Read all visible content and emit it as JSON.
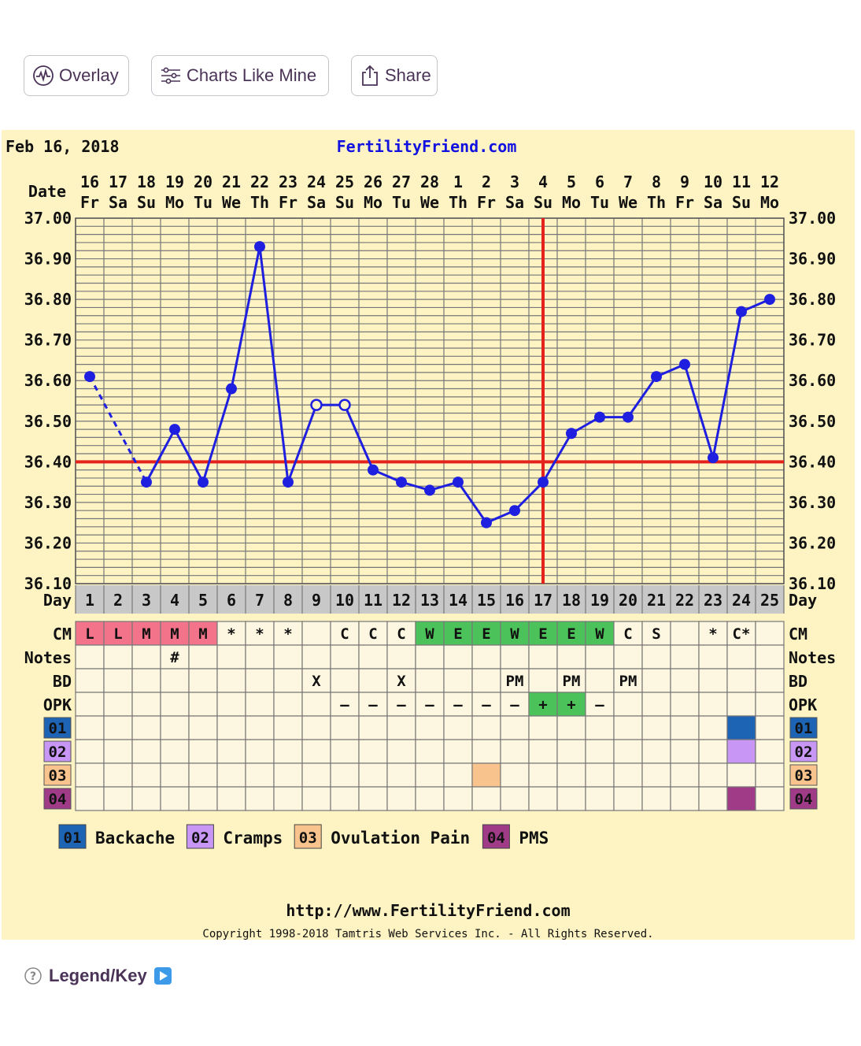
{
  "toolbar": {
    "overlay_label": "Overlay",
    "charts_like_mine_label": "Charts Like Mine",
    "share_label": "Share"
  },
  "chart_data": {
    "type": "line",
    "title": "FertilityFriend.com",
    "subtitle": "Feb 16, 2018",
    "ylim": [
      36.1,
      37.0
    ],
    "yticks": [
      "37.00",
      "36.90",
      "36.80",
      "36.70",
      "36.60",
      "36.50",
      "36.40",
      "36.30",
      "36.20",
      "36.10"
    ],
    "date_row_label": "Date",
    "day_row_label": "Day",
    "dates": [
      "16",
      "17",
      "18",
      "19",
      "20",
      "21",
      "22",
      "23",
      "24",
      "25",
      "26",
      "27",
      "28",
      "1",
      "2",
      "3",
      "4",
      "5",
      "6",
      "7",
      "8",
      "9",
      "10",
      "11",
      "12"
    ],
    "weekdays": [
      "Fr",
      "Sa",
      "Su",
      "Mo",
      "Tu",
      "We",
      "Th",
      "Fr",
      "Sa",
      "Su",
      "Mo",
      "Tu",
      "We",
      "Th",
      "Fr",
      "Sa",
      "Su",
      "Mo",
      "Tu",
      "We",
      "Th",
      "Fr",
      "Sa",
      "Su",
      "Mo"
    ],
    "days": [
      "1",
      "2",
      "3",
      "4",
      "5",
      "6",
      "7",
      "8",
      "9",
      "10",
      "11",
      "12",
      "13",
      "14",
      "15",
      "16",
      "17",
      "18",
      "19",
      "20",
      "21",
      "22",
      "23",
      "24",
      "25"
    ],
    "series": [
      {
        "values": [
          36.61,
          null,
          36.35,
          36.48,
          36.35,
          36.58,
          36.93,
          36.35,
          36.54,
          36.54,
          36.38,
          36.35,
          36.33,
          36.35,
          36.25,
          36.28,
          36.35,
          36.47,
          36.51,
          36.51,
          36.61,
          36.64,
          36.41,
          36.77,
          36.8
        ],
        "open_points": [
          9,
          10
        ],
        "dashed_segments": [
          [
            1,
            3
          ]
        ],
        "color": "#1f1fe0"
      }
    ],
    "coverline": 36.4,
    "ovulation_day": 17,
    "line_colors": {
      "coverline": "#e3231c",
      "ovulation": "#e3231c"
    },
    "rows": [
      {
        "label": "CM",
        "cells": [
          "L",
          "L",
          "M",
          "M",
          "M",
          "*",
          "*",
          "*",
          "",
          "C",
          "C",
          "C",
          "W",
          "E",
          "E",
          "W",
          "E",
          "E",
          "W",
          "C",
          "S",
          "",
          "*",
          "C*",
          ""
        ],
        "colors": [
          "#f3738a",
          "#f3738a",
          "#f3738a",
          "#f3738a",
          "#f3738a",
          "",
          "",
          "",
          "",
          "",
          "",
          "",
          "#4cc35a",
          "#4cc35a",
          "#4cc35a",
          "#4cc35a",
          "#4cc35a",
          "#4cc35a",
          "#4cc35a",
          "",
          "",
          "",
          "",
          "",
          ""
        ]
      },
      {
        "label": "Notes",
        "cells": [
          "",
          "",
          "",
          "#",
          "",
          "",
          "",
          "",
          "",
          "",
          "",
          "",
          "",
          "",
          "",
          "",
          "",
          "",
          "",
          "",
          "",
          "",
          "",
          "",
          ""
        ]
      },
      {
        "label": "BD",
        "cells": [
          "",
          "",
          "",
          "",
          "",
          "",
          "",
          "",
          "X",
          "",
          "",
          "X",
          "",
          "",
          "",
          "PM",
          "",
          "PM",
          "",
          "PM",
          "",
          "",
          "",
          "",
          ""
        ]
      },
      {
        "label": "OPK",
        "cells": [
          "",
          "",
          "",
          "",
          "",
          "",
          "",
          "",
          "",
          "–",
          "–",
          "–",
          "–",
          "–",
          "–",
          "–",
          "+",
          "+",
          "–",
          "",
          "",
          "",
          "",
          "",
          ""
        ],
        "colors": [
          "",
          "",
          "",
          "",
          "",
          "",
          "",
          "",
          "",
          "",
          "",
          "",
          "",
          "",
          "",
          "",
          "#4cc35a",
          "#4cc35a",
          "",
          "",
          "",
          "",
          "",
          "",
          ""
        ]
      },
      {
        "label": "01",
        "badge_color": "#1e64b4",
        "colors": [
          "",
          "",
          "",
          "",
          "",
          "",
          "",
          "",
          "",
          "",
          "",
          "",
          "",
          "",
          "",
          "",
          "",
          "",
          "",
          "",
          "",
          "",
          "",
          "#1e64b4",
          ""
        ]
      },
      {
        "label": "02",
        "badge_color": "#c896f5",
        "colors": [
          "",
          "",
          "",
          "",
          "",
          "",
          "",
          "",
          "",
          "",
          "",
          "",
          "",
          "",
          "",
          "",
          "",
          "",
          "",
          "",
          "",
          "",
          "",
          "#c896f5",
          ""
        ]
      },
      {
        "label": "03",
        "badge_color": "#f8c38c",
        "colors": [
          "",
          "",
          "",
          "",
          "",
          "",
          "",
          "",
          "",
          "",
          "",
          "",
          "",
          "",
          "#f8c38c",
          "",
          "",
          "",
          "",
          "",
          "",
          "",
          "",
          "",
          ""
        ]
      },
      {
        "label": "04",
        "badge_color": "#a03c87",
        "colors": [
          "",
          "",
          "",
          "",
          "",
          "",
          "",
          "",
          "",
          "",
          "",
          "",
          "",
          "",
          "",
          "",
          "",
          "",
          "",
          "",
          "",
          "",
          "",
          "#a03c87",
          ""
        ]
      }
    ],
    "legend": [
      {
        "code": "01",
        "label": "Backache",
        "color": "#1e64b4"
      },
      {
        "code": "02",
        "label": "Cramps",
        "color": "#c896f5"
      },
      {
        "code": "03",
        "label": "Ovulation Pain",
        "color": "#f8c38c"
      },
      {
        "code": "04",
        "label": "PMS",
        "color": "#a03c87"
      }
    ],
    "footer_url": "http://www.FertilityFriend.com",
    "copyright": "Copyright 1998-2018 Tamtris Web Services Inc. - All Rights Reserved."
  },
  "legend_link": {
    "label": "Legend/Key"
  }
}
